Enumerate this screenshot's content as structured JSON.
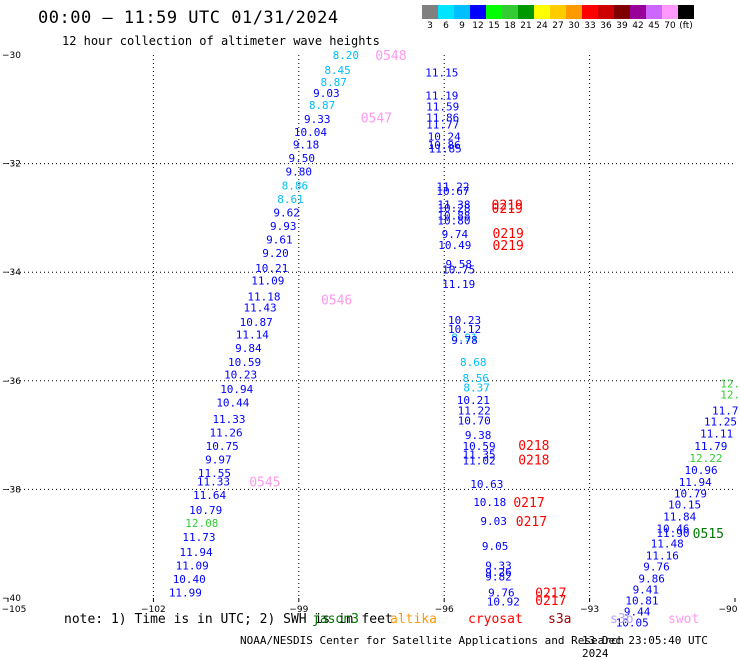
{
  "header": {
    "title": "00:00 – 11:59 UTC 01/31/2024",
    "subtitle": "12 hour collection of altimeter wave heights"
  },
  "legend": {
    "unit": "(ft)",
    "bins": [
      {
        "label": "3",
        "color": "#808080"
      },
      {
        "label": "6",
        "color": "#00e5ff"
      },
      {
        "label": "9",
        "color": "#00bfff"
      },
      {
        "label": "12",
        "color": "#0000ff"
      },
      {
        "label": "15",
        "color": "#00ff00"
      },
      {
        "label": "18",
        "color": "#33cc33"
      },
      {
        "label": "21",
        "color": "#009900"
      },
      {
        "label": "24",
        "color": "#ffff00"
      },
      {
        "label": "27",
        "color": "#ffcc00"
      },
      {
        "label": "30",
        "color": "#ff9900"
      },
      {
        "label": "33",
        "color": "#ff0000"
      },
      {
        "label": "36",
        "color": "#cc0000"
      },
      {
        "label": "39",
        "color": "#800000"
      },
      {
        "label": "42",
        "color": "#990099"
      },
      {
        "label": "45",
        "color": "#cc66ff"
      },
      {
        "label": "70",
        "color": "#ff99ff"
      },
      {
        "label": "(ft)",
        "color": "#000000"
      }
    ]
  },
  "note": "note: 1) Time is in UTC; 2) SWH is in feet",
  "missions": [
    {
      "name": "jason3",
      "color": "#007700"
    },
    {
      "name": "altika",
      "color": "#ff9900"
    },
    {
      "name": "cryosat",
      "color": "#ff0000"
    },
    {
      "name": "s3a",
      "color": "#990000"
    },
    {
      "name": "s3b",
      "color": "#b8a4ff"
    },
    {
      "name": "swot",
      "color": "#ff99ee"
    }
  ],
  "footer": {
    "credit": "NOAA/NESDIS Center for Satellite Applications and Research",
    "timestamp": "13 Dec 23:05:40 UTC 2024"
  },
  "chart_data": {
    "type": "scatter",
    "title": "00:00 – 11:59 UTC 01/31/2024",
    "subtitle": "12 hour collection of altimeter wave heights",
    "xlabel": "",
    "ylabel": "",
    "xlim": [
      -105,
      -90
    ],
    "ylim": [
      -40,
      -30
    ],
    "x_ticks": [
      "−105",
      "−102",
      "−99",
      "−96",
      "−93",
      "−90"
    ],
    "y_ticks": [
      "−30",
      "−32",
      "−34",
      "−36",
      "−38",
      "−40"
    ],
    "grid": true,
    "series": [
      {
        "name": "swot",
        "color_key": "wave_height_ft",
        "points": [
          {
            "x": -98.03,
            "y": -30.0,
            "v": "8.20",
            "c": "#00bfff"
          },
          {
            "x": -98.2,
            "y": -30.28,
            "v": "8.45",
            "c": "#00bfff"
          },
          {
            "x": -98.28,
            "y": -30.5,
            "v": "8.87",
            "c": "#00bfff"
          },
          {
            "x": -98.43,
            "y": -30.7,
            "v": "9.03",
            "c": "#0000ff"
          },
          {
            "x": -98.52,
            "y": -30.92,
            "v": "8.87",
            "c": "#00bfff"
          },
          {
            "x": -98.62,
            "y": -31.18,
            "v": "9.33",
            "c": "#0000ff"
          },
          {
            "x": -98.76,
            "y": -31.42,
            "v": "10.04",
            "c": "#0000ff"
          },
          {
            "x": -98.85,
            "y": -31.65,
            "v": "9.18",
            "c": "#0000ff"
          },
          {
            "x": -98.94,
            "y": -31.9,
            "v": "9.50",
            "c": "#0000ff"
          },
          {
            "x": -99.0,
            "y": -32.15,
            "v": "9.80",
            "c": "#0000ff"
          },
          {
            "x": -99.08,
            "y": -32.4,
            "v": "8.86",
            "c": "#00bfff"
          },
          {
            "x": -99.17,
            "y": -32.65,
            "v": "8.61",
            "c": "#00bfff"
          },
          {
            "x": -99.25,
            "y": -32.9,
            "v": "9.62",
            "c": "#0000ff"
          },
          {
            "x": -99.32,
            "y": -33.15,
            "v": "9.93",
            "c": "#0000ff"
          },
          {
            "x": -99.4,
            "y": -33.4,
            "v": "9.61",
            "c": "#0000ff"
          },
          {
            "x": -99.48,
            "y": -33.65,
            "v": "9.20",
            "c": "#0000ff"
          },
          {
            "x": -99.56,
            "y": -33.92,
            "v": "10.21",
            "c": "#0000ff"
          },
          {
            "x": -99.64,
            "y": -34.15,
            "v": "11.09",
            "c": "#0000ff"
          },
          {
            "x": -99.72,
            "y": -34.45,
            "v": "11.18",
            "c": "#0000ff"
          },
          {
            "x": -99.8,
            "y": -34.65,
            "v": "11.43",
            "c": "#0000ff"
          },
          {
            "x": -99.88,
            "y": -34.92,
            "v": "10.87",
            "c": "#0000ff"
          },
          {
            "x": -99.96,
            "y": -35.15,
            "v": "11.14",
            "c": "#0000ff"
          },
          {
            "x": -100.04,
            "y": -35.4,
            "v": "9.84",
            "c": "#0000ff"
          },
          {
            "x": -100.12,
            "y": -35.65,
            "v": "10.59",
            "c": "#0000ff"
          },
          {
            "x": -100.2,
            "y": -35.88,
            "v": "10.23",
            "c": "#0000ff"
          },
          {
            "x": -100.28,
            "y": -36.15,
            "v": "10.94",
            "c": "#0000ff"
          },
          {
            "x": -100.36,
            "y": -36.4,
            "v": "10.44",
            "c": "#0000ff"
          },
          {
            "x": -100.44,
            "y": -36.7,
            "v": "11.33",
            "c": "#0000ff"
          },
          {
            "x": -100.5,
            "y": -36.95,
            "v": "11.26",
            "c": "#0000ff"
          },
          {
            "x": -100.58,
            "y": -37.2,
            "v": "10.75",
            "c": "#0000ff"
          },
          {
            "x": -100.66,
            "y": -37.45,
            "v": "9.97",
            "c": "#0000ff"
          },
          {
            "x": -100.74,
            "y": -37.7,
            "v": "11.55",
            "c": "#0000ff"
          },
          {
            "x": -100.76,
            "y": -37.85,
            "v": "11.33",
            "c": "#0000ff"
          },
          {
            "x": -100.84,
            "y": -38.1,
            "v": "11.64",
            "c": "#0000ff"
          },
          {
            "x": -100.92,
            "y": -38.38,
            "v": "10.79",
            "c": "#0000ff"
          },
          {
            "x": -101.0,
            "y": -38.62,
            "v": "12.08",
            "c": "#33cc33"
          },
          {
            "x": -101.06,
            "y": -38.88,
            "v": "11.73",
            "c": "#0000ff"
          },
          {
            "x": -101.12,
            "y": -39.15,
            "v": "11.94",
            "c": "#0000ff"
          },
          {
            "x": -101.2,
            "y": -39.4,
            "v": "11.09",
            "c": "#0000ff"
          },
          {
            "x": -101.26,
            "y": -39.65,
            "v": "10.40",
            "c": "#0000ff"
          },
          {
            "x": -101.34,
            "y": -39.9,
            "v": "11.99",
            "c": "#0000ff"
          }
        ]
      },
      {
        "name": "cryosat",
        "color_key": "wave_height_ft",
        "points": [
          {
            "x": -96.05,
            "y": -30.32,
            "v": "11.15",
            "c": "#0000ff"
          },
          {
            "x": -96.05,
            "y": -30.75,
            "v": "11.19",
            "c": "#0000ff"
          },
          {
            "x": -96.03,
            "y": -30.95,
            "v": "11.59",
            "c": "#0000ff"
          },
          {
            "x": -96.03,
            "y": -31.15,
            "v": "11.86",
            "c": "#0000ff"
          },
          {
            "x": -96.03,
            "y": -31.28,
            "v": "11.77",
            "c": "#0000ff"
          },
          {
            "x": -96.0,
            "y": -31.5,
            "v": "10.24",
            "c": "#0000ff"
          },
          {
            "x": -96.0,
            "y": -31.66,
            "v": "10.86",
            "c": "#0000ff"
          },
          {
            "x": -95.98,
            "y": -31.72,
            "v": "11.85",
            "c": "#0000ff"
          },
          {
            "x": -95.82,
            "y": -32.42,
            "v": "11.22",
            "c": "#0000ff"
          },
          {
            "x": -95.82,
            "y": -32.5,
            "v": "10.67",
            "c": "#0000ff"
          },
          {
            "x": -95.8,
            "y": -32.75,
            "v": "11.38",
            "c": "#0000ff"
          },
          {
            "x": -95.8,
            "y": -32.82,
            "v": "10.28",
            "c": "#0000ff"
          },
          {
            "x": -95.8,
            "y": -32.96,
            "v": "10.88",
            "c": "#0000ff"
          },
          {
            "x": -95.8,
            "y": -33.05,
            "v": "10.80",
            "c": "#0000ff"
          },
          {
            "x": -95.78,
            "y": -33.3,
            "v": "9.74",
            "c": "#0000ff"
          },
          {
            "x": -95.78,
            "y": -33.5,
            "v": "10.49",
            "c": "#0000ff"
          },
          {
            "x": -95.7,
            "y": -33.85,
            "v": "9.58",
            "c": "#0000ff"
          },
          {
            "x": -95.7,
            "y": -33.95,
            "v": "10.75",
            "c": "#0000ff"
          },
          {
            "x": -95.7,
            "y": -34.22,
            "v": "11.19",
            "c": "#0000ff"
          },
          {
            "x": -95.58,
            "y": -34.88,
            "v": "10.23",
            "c": "#0000ff"
          },
          {
            "x": -95.58,
            "y": -35.05,
            "v": "10.12",
            "c": "#0000ff"
          },
          {
            "x": -95.58,
            "y": -35.2,
            "v": "8.91",
            "c": "#00bfff"
          },
          {
            "x": -95.58,
            "y": -35.25,
            "v": "9.78",
            "c": "#0000ff"
          },
          {
            "x": -95.4,
            "y": -35.65,
            "v": "8.68",
            "c": "#00bfff"
          },
          {
            "x": -95.35,
            "y": -35.95,
            "v": "8.56",
            "c": "#00bfff"
          },
          {
            "x": -95.33,
            "y": -36.12,
            "v": "8.37",
            "c": "#00bfff"
          },
          {
            "x": -95.4,
            "y": -36.35,
            "v": "10.21",
            "c": "#0000ff"
          },
          {
            "x": -95.38,
            "y": -36.55,
            "v": "11.22",
            "c": "#0000ff"
          },
          {
            "x": -95.38,
            "y": -36.73,
            "v": "10.70",
            "c": "#0000ff"
          },
          {
            "x": -95.3,
            "y": -37.0,
            "v": "9.38",
            "c": "#0000ff"
          },
          {
            "x": -95.28,
            "y": -37.2,
            "v": "10.59",
            "c": "#0000ff"
          },
          {
            "x": -95.28,
            "y": -37.36,
            "v": "11.35",
            "c": "#0000ff"
          },
          {
            "x": -95.28,
            "y": -37.47,
            "v": "11.02",
            "c": "#0000ff"
          },
          {
            "x": -95.12,
            "y": -37.9,
            "v": "10.63",
            "c": "#0000ff"
          },
          {
            "x": -95.06,
            "y": -38.23,
            "v": "10.18",
            "c": "#0000ff"
          },
          {
            "x": -94.98,
            "y": -38.58,
            "v": "9.03",
            "c": "#0000ff"
          },
          {
            "x": -94.95,
            "y": -39.04,
            "v": "9.05",
            "c": "#0000ff"
          },
          {
            "x": -94.88,
            "y": -39.4,
            "v": "9.33",
            "c": "#0000ff"
          },
          {
            "x": -94.88,
            "y": -39.52,
            "v": "9.26",
            "c": "#0000ff"
          },
          {
            "x": -94.88,
            "y": -39.6,
            "v": "9.82",
            "c": "#0000ff"
          },
          {
            "x": -94.82,
            "y": -39.9,
            "v": "9.76",
            "c": "#0000ff"
          },
          {
            "x": -94.78,
            "y": -40.06,
            "v": "10.92",
            "c": "#0000ff"
          }
        ]
      },
      {
        "name": "jason3",
        "color_key": "wave_height_ft",
        "points": [
          {
            "x": -90.1,
            "y": -36.05,
            "v": "12.",
            "c": "#33cc33"
          },
          {
            "x": -90.1,
            "y": -36.25,
            "v": "12.",
            "c": "#33cc33"
          },
          {
            "x": -90.2,
            "y": -36.55,
            "v": "11.7",
            "c": "#0000ff"
          },
          {
            "x": -90.3,
            "y": -36.75,
            "v": "11.25",
            "c": "#0000ff"
          },
          {
            "x": -90.38,
            "y": -36.97,
            "v": "11.11",
            "c": "#0000ff"
          },
          {
            "x": -90.5,
            "y": -37.2,
            "v": "11.79",
            "c": "#0000ff"
          },
          {
            "x": -90.6,
            "y": -37.42,
            "v": "12.22",
            "c": "#33cc33"
          },
          {
            "x": -90.7,
            "y": -37.64,
            "v": "10.96",
            "c": "#0000ff"
          },
          {
            "x": -90.82,
            "y": -37.86,
            "v": "11.94",
            "c": "#0000ff"
          },
          {
            "x": -90.92,
            "y": -38.08,
            "v": "10.79",
            "c": "#0000ff"
          },
          {
            "x": -91.04,
            "y": -38.28,
            "v": "10.15",
            "c": "#0000ff"
          },
          {
            "x": -91.14,
            "y": -38.5,
            "v": "11.84",
            "c": "#0000ff"
          },
          {
            "x": -91.28,
            "y": -38.72,
            "v": "10.46",
            "c": "#0000ff"
          },
          {
            "x": -91.28,
            "y": -38.8,
            "v": "11.90",
            "c": "#0000ff"
          },
          {
            "x": -91.4,
            "y": -39.0,
            "v": "11.48",
            "c": "#0000ff"
          },
          {
            "x": -91.5,
            "y": -39.22,
            "v": "11.16",
            "c": "#0000ff"
          },
          {
            "x": -91.62,
            "y": -39.42,
            "v": "9.76",
            "c": "#0000ff"
          },
          {
            "x": -91.72,
            "y": -39.64,
            "v": "9.86",
            "c": "#0000ff"
          },
          {
            "x": -91.84,
            "y": -39.84,
            "v": "9.41",
            "c": "#0000ff"
          },
          {
            "x": -91.92,
            "y": -40.05,
            "v": "10.81",
            "c": "#0000ff"
          },
          {
            "x": -92.02,
            "y": -40.25,
            "v": "9.44",
            "c": "#0000ff"
          },
          {
            "x": -92.12,
            "y": -40.45,
            "v": "10.05",
            "c": "#0000ff"
          }
        ]
      }
    ],
    "annotations": [
      {
        "text": "0548",
        "x": -97.1,
        "y": -30.0,
        "color": "#ff99ee"
      },
      {
        "text": "0547",
        "x": -97.4,
        "y": -31.15,
        "color": "#ff99ee"
      },
      {
        "text": "0546",
        "x": -98.22,
        "y": -34.5,
        "color": "#ff99ee"
      },
      {
        "text": "0545",
        "x": -99.7,
        "y": -37.85,
        "color": "#ff99ee"
      },
      {
        "text": "0219",
        "x": -94.7,
        "y": -32.75,
        "color": "#ff0000"
      },
      {
        "text": "0219",
        "x": -94.7,
        "y": -32.82,
        "color": "#ff0000"
      },
      {
        "text": "0219",
        "x": -94.68,
        "y": -33.28,
        "color": "#ff0000"
      },
      {
        "text": "0219",
        "x": -94.68,
        "y": -33.5,
        "color": "#ff0000"
      },
      {
        "text": "0218",
        "x": -94.15,
        "y": -37.18,
        "color": "#ff0000"
      },
      {
        "text": "0218",
        "x": -94.15,
        "y": -37.45,
        "color": "#ff0000"
      },
      {
        "text": "0217",
        "x": -94.25,
        "y": -38.23,
        "color": "#ff0000"
      },
      {
        "text": "0217",
        "x": -94.2,
        "y": -38.58,
        "color": "#ff0000"
      },
      {
        "text": "0217",
        "x": -93.8,
        "y": -39.9,
        "color": "#ff0000"
      },
      {
        "text": "0217",
        "x": -93.8,
        "y": -40.04,
        "color": "#ff0000"
      },
      {
        "text": "0515",
        "x": -90.55,
        "y": -38.8,
        "color": "#007700"
      }
    ]
  }
}
